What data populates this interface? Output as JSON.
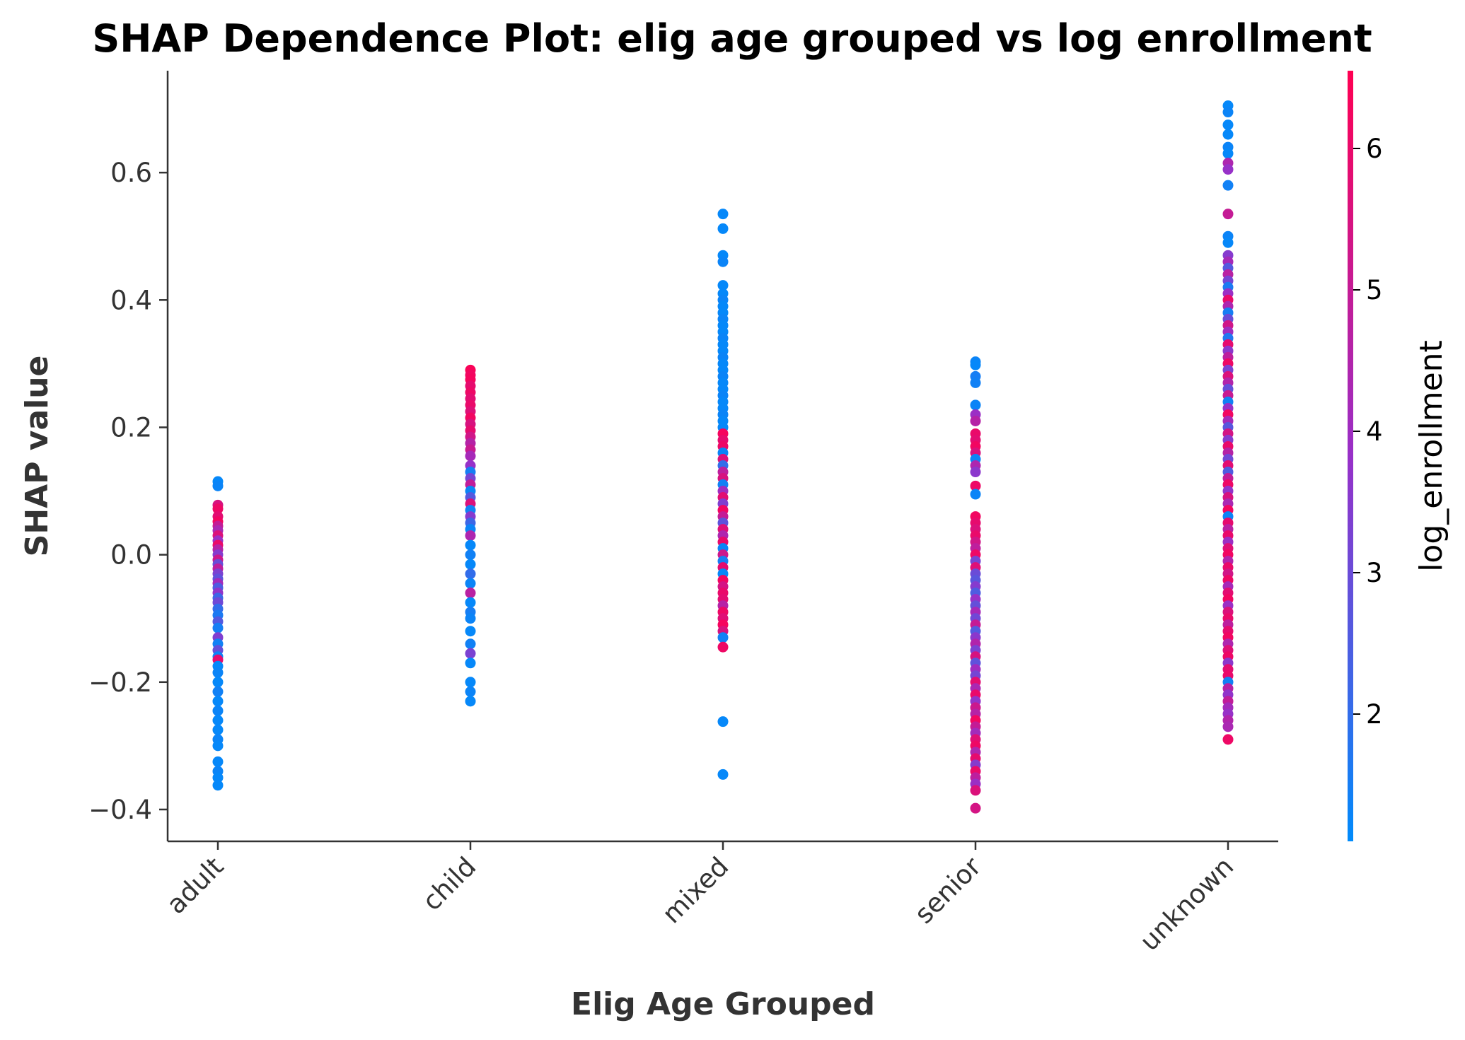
{
  "chart_data": {
    "type": "scatter",
    "title": "SHAP Dependence Plot: elig age grouped vs log enrollment",
    "xlabel": "Elig Age Grouped",
    "ylabel": "SHAP value",
    "categories": [
      "adult",
      "child",
      "mixed",
      "senior",
      "unknown"
    ],
    "ylim": [
      -0.45,
      0.76
    ],
    "yticks": [
      -0.4,
      -0.2,
      0.0,
      0.2,
      0.4,
      0.6
    ],
    "ytick_labels": [
      "−0.4",
      "−0.2",
      "0.0",
      "0.2",
      "0.4",
      "0.6"
    ],
    "grid": false,
    "colorbar": {
      "label": "log_enrollment",
      "range": [
        1.1,
        6.55
      ],
      "ticks": [
        2,
        3,
        4,
        5,
        6
      ],
      "tick_labels": [
        "2",
        "3",
        "4",
        "5",
        "6"
      ],
      "color_low": "#008bfb",
      "color_high": "#ff0052"
    },
    "series": [
      {
        "category": "adult",
        "points": [
          [
            0.115,
            1.2
          ],
          [
            0.108,
            1.3
          ],
          [
            0.078,
            5.5
          ],
          [
            0.072,
            6.1
          ],
          [
            0.06,
            5.8
          ],
          [
            0.052,
            6.2
          ],
          [
            0.045,
            5.0
          ],
          [
            0.038,
            4.3
          ],
          [
            0.03,
            5.6
          ],
          [
            0.022,
            3.9
          ],
          [
            0.015,
            6.0
          ],
          [
            0.008,
            4.6
          ],
          [
            0.0,
            3.5
          ],
          [
            -0.008,
            5.2
          ],
          [
            -0.015,
            3.0
          ],
          [
            -0.022,
            4.8
          ],
          [
            -0.03,
            3.3
          ],
          [
            -0.038,
            2.8
          ],
          [
            -0.045,
            4.1
          ],
          [
            -0.052,
            2.5
          ],
          [
            -0.06,
            3.7
          ],
          [
            -0.068,
            2.2
          ],
          [
            -0.075,
            3.1
          ],
          [
            -0.085,
            2.0
          ],
          [
            -0.095,
            1.6
          ],
          [
            -0.105,
            2.6
          ],
          [
            -0.115,
            1.5
          ],
          [
            -0.13,
            3.4
          ],
          [
            -0.14,
            1.4
          ],
          [
            -0.15,
            2.9
          ],
          [
            -0.16,
            1.3
          ],
          [
            -0.165,
            5.9
          ],
          [
            -0.175,
            1.2
          ],
          [
            -0.185,
            1.3
          ],
          [
            -0.2,
            1.2
          ],
          [
            -0.215,
            1.4
          ],
          [
            -0.23,
            1.2
          ],
          [
            -0.245,
            1.3
          ],
          [
            -0.26,
            1.2
          ],
          [
            -0.275,
            1.2
          ],
          [
            -0.29,
            1.3
          ],
          [
            -0.3,
            1.2
          ],
          [
            -0.325,
            1.2
          ],
          [
            -0.34,
            1.3
          ],
          [
            -0.35,
            1.2
          ],
          [
            -0.362,
            1.2
          ]
        ]
      },
      {
        "category": "child",
        "points": [
          [
            0.29,
            6.4
          ],
          [
            0.282,
            6.2
          ],
          [
            0.275,
            6.3
          ],
          [
            0.265,
            5.9
          ],
          [
            0.255,
            6.1
          ],
          [
            0.245,
            5.8
          ],
          [
            0.235,
            6.0
          ],
          [
            0.225,
            5.7
          ],
          [
            0.215,
            6.2
          ],
          [
            0.205,
            5.5
          ],
          [
            0.195,
            5.9
          ],
          [
            0.185,
            5.3
          ],
          [
            0.175,
            4.6
          ],
          [
            0.165,
            5.1
          ],
          [
            0.155,
            4.2
          ],
          [
            0.14,
            3.8
          ],
          [
            0.13,
            1.5
          ],
          [
            0.12,
            3.2
          ],
          [
            0.11,
            4.9
          ],
          [
            0.1,
            1.3
          ],
          [
            0.09,
            2.6
          ],
          [
            0.08,
            5.6
          ],
          [
            0.07,
            1.4
          ],
          [
            0.06,
            3.5
          ],
          [
            0.05,
            2.2
          ],
          [
            0.04,
            1.3
          ],
          [
            0.03,
            4.4
          ],
          [
            0.015,
            1.2
          ],
          [
            0.0,
            1.4
          ],
          [
            -0.015,
            1.2
          ],
          [
            -0.03,
            2.0
          ],
          [
            -0.045,
            1.3
          ],
          [
            -0.06,
            4.7
          ],
          [
            -0.075,
            1.2
          ],
          [
            -0.09,
            1.5
          ],
          [
            -0.1,
            1.3
          ],
          [
            -0.12,
            1.2
          ],
          [
            -0.14,
            1.4
          ],
          [
            -0.155,
            3.3
          ],
          [
            -0.17,
            1.2
          ],
          [
            -0.2,
            1.2
          ],
          [
            -0.215,
            1.3
          ],
          [
            -0.23,
            1.2
          ]
        ]
      },
      {
        "category": "mixed",
        "points": [
          [
            0.535,
            1.2
          ],
          [
            0.512,
            1.2
          ],
          [
            0.47,
            1.2
          ],
          [
            0.46,
            1.3
          ],
          [
            0.423,
            1.2
          ],
          [
            0.41,
            1.2
          ],
          [
            0.4,
            1.3
          ],
          [
            0.39,
            1.2
          ],
          [
            0.38,
            1.2
          ],
          [
            0.37,
            1.3
          ],
          [
            0.36,
            1.2
          ],
          [
            0.35,
            1.2
          ],
          [
            0.34,
            1.3
          ],
          [
            0.33,
            1.2
          ],
          [
            0.32,
            1.2
          ],
          [
            0.31,
            1.3
          ],
          [
            0.3,
            1.2
          ],
          [
            0.29,
            1.2
          ],
          [
            0.28,
            1.3
          ],
          [
            0.27,
            1.2
          ],
          [
            0.26,
            1.2
          ],
          [
            0.25,
            1.3
          ],
          [
            0.24,
            1.2
          ],
          [
            0.23,
            1.2
          ],
          [
            0.22,
            1.3
          ],
          [
            0.21,
            1.2
          ],
          [
            0.2,
            1.2
          ],
          [
            0.19,
            6.3
          ],
          [
            0.18,
            5.9
          ],
          [
            0.17,
            6.1
          ],
          [
            0.16,
            1.3
          ],
          [
            0.15,
            5.6
          ],
          [
            0.14,
            2.0
          ],
          [
            0.13,
            4.8
          ],
          [
            0.12,
            5.5
          ],
          [
            0.11,
            1.4
          ],
          [
            0.1,
            4.0
          ],
          [
            0.09,
            5.8
          ],
          [
            0.08,
            3.4
          ],
          [
            0.07,
            6.2
          ],
          [
            0.06,
            5.0
          ],
          [
            0.05,
            2.8
          ],
          [
            0.04,
            5.7
          ],
          [
            0.03,
            4.4
          ],
          [
            0.02,
            6.0
          ],
          [
            0.01,
            1.3
          ],
          [
            0.0,
            5.2
          ],
          [
            -0.01,
            1.5
          ],
          [
            -0.02,
            5.9
          ],
          [
            -0.03,
            1.2
          ],
          [
            -0.04,
            6.2
          ],
          [
            -0.05,
            5.4
          ],
          [
            -0.06,
            6.0
          ],
          [
            -0.07,
            5.8
          ],
          [
            -0.08,
            4.6
          ],
          [
            -0.09,
            6.1
          ],
          [
            -0.1,
            5.7
          ],
          [
            -0.11,
            6.3
          ],
          [
            -0.12,
            5.5
          ],
          [
            -0.13,
            1.4
          ],
          [
            -0.145,
            6.1
          ],
          [
            -0.262,
            1.2
          ],
          [
            -0.345,
            1.2
          ]
        ]
      },
      {
        "category": "senior",
        "points": [
          [
            0.303,
            1.3
          ],
          [
            0.298,
            1.2
          ],
          [
            0.28,
            1.5
          ],
          [
            0.27,
            1.4
          ],
          [
            0.235,
            1.3
          ],
          [
            0.22,
            3.9
          ],
          [
            0.21,
            4.6
          ],
          [
            0.19,
            6.0
          ],
          [
            0.18,
            5.8
          ],
          [
            0.17,
            6.2
          ],
          [
            0.16,
            5.5
          ],
          [
            0.15,
            1.3
          ],
          [
            0.14,
            4.4
          ],
          [
            0.13,
            3.6
          ],
          [
            0.108,
            6.1
          ],
          [
            0.095,
            1.3
          ],
          [
            0.06,
            6.2
          ],
          [
            0.05,
            5.9
          ],
          [
            0.04,
            5.6
          ],
          [
            0.03,
            6.0
          ],
          [
            0.02,
            5.3
          ],
          [
            0.01,
            4.8
          ],
          [
            0.0,
            6.1
          ],
          [
            -0.01,
            3.2
          ],
          [
            -0.02,
            5.7
          ],
          [
            -0.03,
            3.0
          ],
          [
            -0.04,
            2.7
          ],
          [
            -0.05,
            3.5
          ],
          [
            -0.06,
            2.5
          ],
          [
            -0.07,
            3.8
          ],
          [
            -0.08,
            2.9
          ],
          [
            -0.09,
            4.2
          ],
          [
            -0.1,
            3.1
          ],
          [
            -0.11,
            5.0
          ],
          [
            -0.12,
            2.6
          ],
          [
            -0.13,
            3.6
          ],
          [
            -0.14,
            4.5
          ],
          [
            -0.15,
            3.3
          ],
          [
            -0.16,
            5.5
          ],
          [
            -0.17,
            2.8
          ],
          [
            -0.18,
            4.0
          ],
          [
            -0.19,
            3.2
          ],
          [
            -0.2,
            5.8
          ],
          [
            -0.21,
            4.3
          ],
          [
            -0.22,
            6.0
          ],
          [
            -0.23,
            3.7
          ],
          [
            -0.24,
            5.2
          ],
          [
            -0.25,
            4.6
          ],
          [
            -0.26,
            6.2
          ],
          [
            -0.27,
            5.0
          ],
          [
            -0.28,
            4.1
          ],
          [
            -0.29,
            5.7
          ],
          [
            -0.3,
            6.1
          ],
          [
            -0.31,
            4.4
          ],
          [
            -0.32,
            5.9
          ],
          [
            -0.33,
            3.5
          ],
          [
            -0.34,
            6.0
          ],
          [
            -0.35,
            4.8
          ],
          [
            -0.36,
            3.9
          ],
          [
            -0.37,
            5.6
          ],
          [
            -0.398,
            5.4
          ]
        ]
      },
      {
        "category": "unknown",
        "points": [
          [
            0.705,
            1.2
          ],
          [
            0.695,
            1.3
          ],
          [
            0.675,
            1.2
          ],
          [
            0.66,
            1.2
          ],
          [
            0.64,
            1.3
          ],
          [
            0.63,
            1.2
          ],
          [
            0.615,
            4.4
          ],
          [
            0.605,
            3.8
          ],
          [
            0.58,
            1.4
          ],
          [
            0.535,
            5.0
          ],
          [
            0.5,
            1.3
          ],
          [
            0.49,
            1.2
          ],
          [
            0.47,
            3.5
          ],
          [
            0.46,
            4.2
          ],
          [
            0.45,
            2.6
          ],
          [
            0.44,
            4.7
          ],
          [
            0.43,
            3.2
          ],
          [
            0.42,
            1.6
          ],
          [
            0.41,
            3.9
          ],
          [
            0.4,
            6.0
          ],
          [
            0.39,
            4.4
          ],
          [
            0.38,
            1.5
          ],
          [
            0.37,
            3.0
          ],
          [
            0.36,
            5.3
          ],
          [
            0.35,
            4.0
          ],
          [
            0.34,
            1.7
          ],
          [
            0.33,
            5.9
          ],
          [
            0.32,
            3.6
          ],
          [
            0.31,
            4.8
          ],
          [
            0.3,
            6.1
          ],
          [
            0.29,
            3.3
          ],
          [
            0.28,
            5.6
          ],
          [
            0.27,
            4.5
          ],
          [
            0.26,
            2.9
          ],
          [
            0.25,
            5.1
          ],
          [
            0.24,
            1.4
          ],
          [
            0.23,
            3.8
          ],
          [
            0.22,
            6.2
          ],
          [
            0.21,
            4.2
          ],
          [
            0.2,
            2.7
          ],
          [
            0.19,
            5.4
          ],
          [
            0.18,
            3.5
          ],
          [
            0.17,
            6.0
          ],
          [
            0.16,
            4.6
          ],
          [
            0.15,
            3.1
          ],
          [
            0.14,
            5.8
          ],
          [
            0.13,
            2.5
          ],
          [
            0.12,
            4.9
          ],
          [
            0.11,
            6.1
          ],
          [
            0.1,
            3.7
          ],
          [
            0.09,
            5.5
          ],
          [
            0.08,
            4.3
          ],
          [
            0.07,
            6.2
          ],
          [
            0.06,
            1.3
          ],
          [
            0.05,
            5.9
          ],
          [
            0.04,
            4.7
          ],
          [
            0.03,
            6.0
          ],
          [
            0.02,
            3.9
          ],
          [
            0.01,
            5.7
          ],
          [
            0.0,
            6.2
          ],
          [
            -0.01,
            4.5
          ],
          [
            -0.02,
            6.0
          ],
          [
            -0.03,
            5.3
          ],
          [
            -0.04,
            6.1
          ],
          [
            -0.05,
            4.2
          ],
          [
            -0.06,
            5.8
          ],
          [
            -0.07,
            6.2
          ],
          [
            -0.08,
            3.9
          ],
          [
            -0.09,
            5.6
          ],
          [
            -0.1,
            6.0
          ],
          [
            -0.11,
            4.8
          ],
          [
            -0.12,
            5.9
          ],
          [
            -0.13,
            6.2
          ],
          [
            -0.14,
            4.4
          ],
          [
            -0.15,
            5.7
          ],
          [
            -0.16,
            6.1
          ],
          [
            -0.17,
            3.6
          ],
          [
            -0.18,
            5.8
          ],
          [
            -0.19,
            6.0
          ],
          [
            -0.2,
            1.4
          ],
          [
            -0.21,
            4.6
          ],
          [
            -0.22,
            3.7
          ],
          [
            -0.23,
            4.9
          ],
          [
            -0.24,
            4.1
          ],
          [
            -0.25,
            3.8
          ],
          [
            -0.26,
            4.5
          ],
          [
            -0.27,
            4.3
          ],
          [
            -0.29,
            6.1
          ]
        ]
      }
    ]
  }
}
